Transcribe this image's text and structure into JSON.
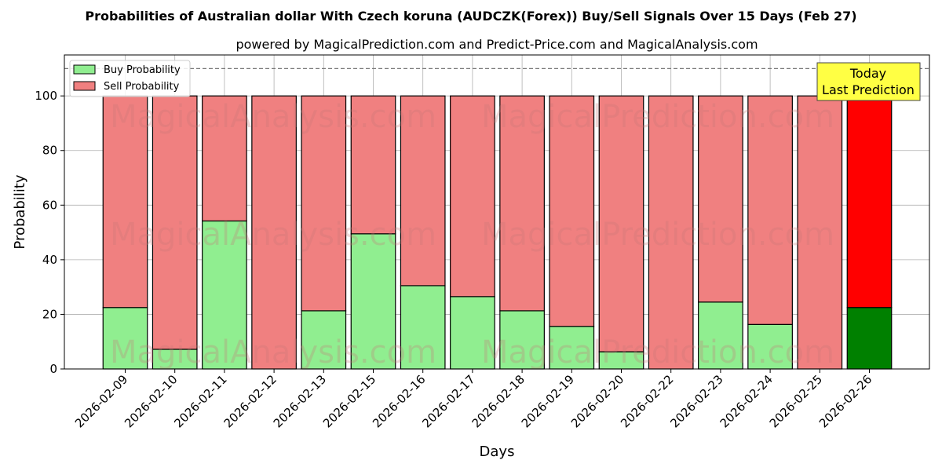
{
  "chart_data": {
    "type": "bar",
    "stacked": true,
    "title": "Probabilities of Australian dollar With Czech koruna (AUDCZK(Forex)) Buy/Sell Signals Over 15 Days (Feb 27)",
    "subtitle": "powered by MagicalPrediction.com and Predict-Price.com and MagicalAnalysis.com",
    "xlabel": "Days",
    "ylabel": "Probability",
    "ylim": [
      0,
      115
    ],
    "yticks": [
      0,
      20,
      40,
      60,
      80,
      100
    ],
    "grid": true,
    "legend_position": "top-left",
    "reference_line": 110,
    "categories": [
      "2026-02-09",
      "2026-02-10",
      "2026-02-11",
      "2026-02-12",
      "2026-02-13",
      "2026-02-15",
      "2026-02-16",
      "2026-02-17",
      "2026-02-18",
      "2026-02-19",
      "2026-02-20",
      "2026-02-22",
      "2026-02-23",
      "2026-02-24",
      "2026-02-25",
      "2026-02-26"
    ],
    "series": [
      {
        "name": "Buy Probability",
        "color": "#90ee90",
        "highlight_color": "#008000",
        "values": [
          22.5,
          7.2,
          54.2,
          0,
          21.3,
          49.5,
          30.5,
          26.5,
          21.3,
          15.6,
          6.3,
          0,
          24.5,
          16.3,
          0,
          22.5
        ]
      },
      {
        "name": "Sell Probability",
        "color": "#f08080",
        "highlight_color": "#ff0000",
        "values": [
          77.5,
          92.8,
          45.8,
          100,
          78.7,
          50.5,
          69.5,
          73.5,
          78.7,
          84.4,
          93.7,
          100,
          75.5,
          83.7,
          100,
          77.5
        ]
      }
    ],
    "highlight_index": 15,
    "annotation": {
      "line1": "Today",
      "line2": "Last Prediction",
      "background": "#ffff44"
    },
    "watermarks": [
      "MagicalAnalysis.com",
      "MagicalPrediction.com"
    ]
  }
}
